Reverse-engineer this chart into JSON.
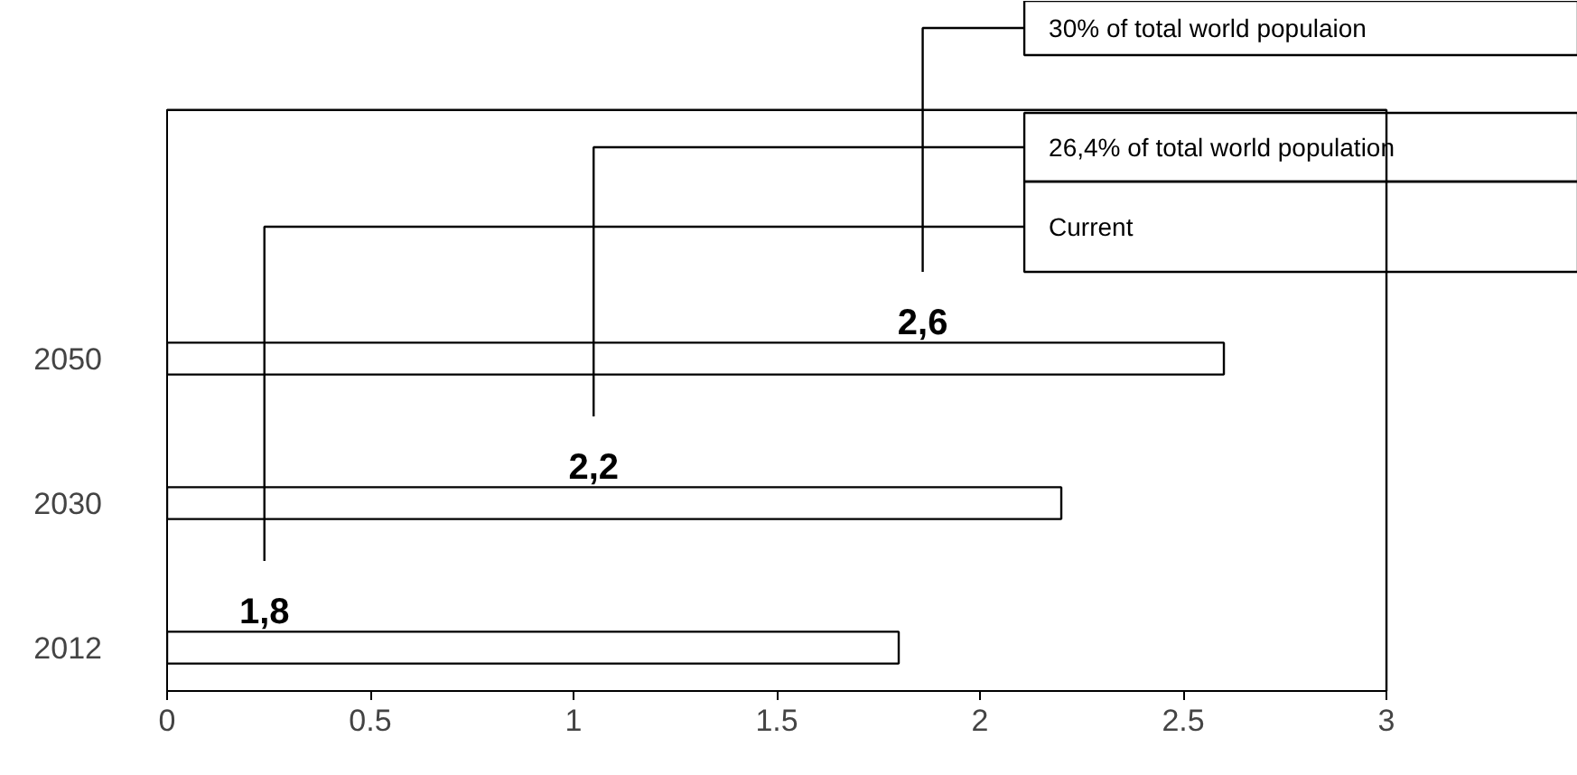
{
  "chart_data": {
    "type": "bar",
    "orientation": "horizontal",
    "categories": [
      "2050",
      "2030",
      "2012"
    ],
    "values": [
      2.6,
      2.2,
      1.8
    ],
    "value_labels": [
      "2,6",
      "2,2",
      "1,8"
    ],
    "color": "#ffffff",
    "xlim": [
      0,
      3
    ],
    "xticks": [
      0,
      0.5,
      1,
      1.5,
      2,
      2.5,
      3
    ],
    "grid": false,
    "annotations": [
      "30% of total world populaion",
      "26,4% of total world population",
      "Current"
    ]
  }
}
